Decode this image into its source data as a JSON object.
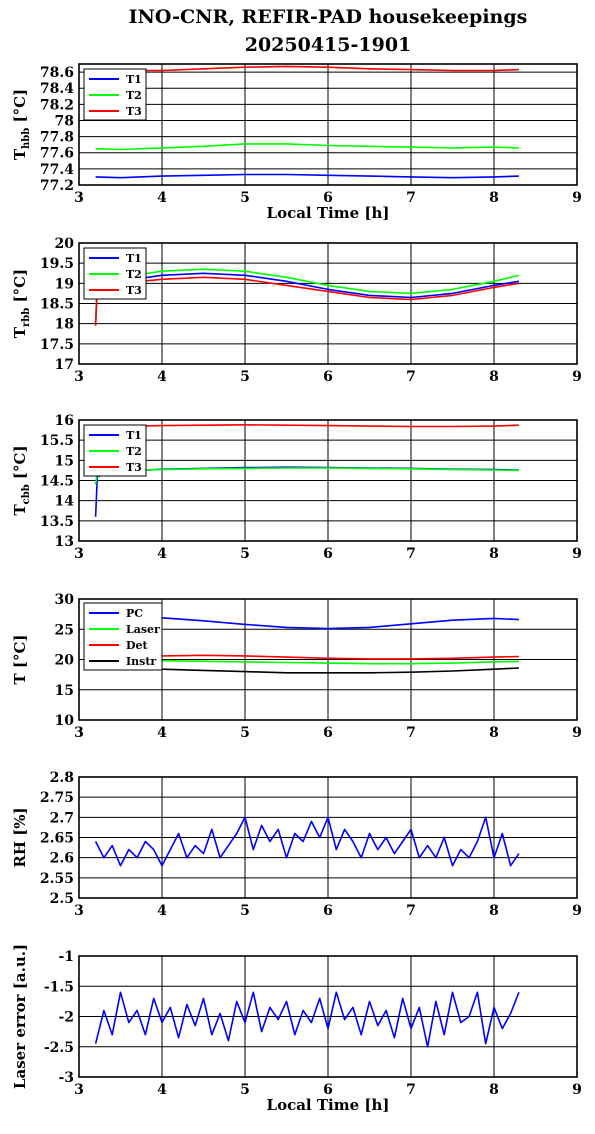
{
  "figure": {
    "title_line1": "INO-CNR, REFIR-PAD housekeepings",
    "title_line2": "20250415-1901"
  },
  "chart_data": [
    {
      "type": "line",
      "ylabel": "T",
      "ylabel_sub": "hbb",
      "ylabel_unit": " [°C]",
      "xlabel": "Local Time [h]",
      "xlim": [
        3,
        9
      ],
      "ylim": [
        77.2,
        78.7
      ],
      "xticks": [
        "3",
        "4",
        "5",
        "6",
        "7",
        "8",
        "9"
      ],
      "yticks": [
        "77.2",
        "77.4",
        "77.6",
        "77.8",
        "78",
        "78.2",
        "78.4",
        "78.6"
      ],
      "ytick_values": [
        77.2,
        77.4,
        77.6,
        77.8,
        78.0,
        78.2,
        78.4,
        78.6
      ],
      "grid": true,
      "legend": "top-left",
      "series": [
        {
          "name": "T1",
          "color": "#0000ff",
          "x": [
            3.2,
            3.5,
            4,
            4.5,
            5,
            5.5,
            6,
            6.5,
            7,
            7.5,
            8,
            8.3
          ],
          "y": [
            77.3,
            77.29,
            77.31,
            77.32,
            77.33,
            77.33,
            77.32,
            77.31,
            77.3,
            77.29,
            77.3,
            77.31
          ]
        },
        {
          "name": "T2",
          "color": "#00ff00",
          "x": [
            3.2,
            3.5,
            4,
            4.5,
            5,
            5.5,
            6,
            6.5,
            7,
            7.5,
            8,
            8.3
          ],
          "y": [
            77.65,
            77.64,
            77.66,
            77.68,
            77.71,
            77.71,
            77.69,
            77.68,
            77.67,
            77.66,
            77.67,
            77.66
          ]
        },
        {
          "name": "T3",
          "color": "#ff0000",
          "x": [
            3.2,
            3.5,
            4,
            4.5,
            5,
            5.5,
            6,
            6.5,
            7,
            7.5,
            8,
            8.3
          ],
          "y": [
            78.63,
            78.62,
            78.62,
            78.64,
            78.66,
            78.67,
            78.66,
            78.64,
            78.63,
            78.62,
            78.62,
            78.63
          ]
        }
      ]
    },
    {
      "type": "line",
      "ylabel": "T",
      "ylabel_sub": "rbb",
      "ylabel_unit": " [°C]",
      "xlabel": "",
      "xlim": [
        3,
        9
      ],
      "ylim": [
        17,
        20
      ],
      "xticks": [
        "3",
        "4",
        "5",
        "6",
        "7",
        "8",
        "9"
      ],
      "yticks": [
        "17",
        "17.5",
        "18",
        "18.5",
        "19",
        "19.5",
        "20"
      ],
      "ytick_values": [
        17,
        17.5,
        18,
        18.5,
        19,
        19.5,
        20
      ],
      "grid": true,
      "legend": "top-left",
      "series": [
        {
          "name": "T1",
          "color": "#0000ff",
          "x": [
            3.2,
            3.22,
            3.5,
            4,
            4.5,
            5,
            5.5,
            6,
            6.5,
            7,
            7.5,
            8,
            8.3
          ],
          "y": [
            18.0,
            19.0,
            19.05,
            19.2,
            19.25,
            19.2,
            19.05,
            18.85,
            18.7,
            18.65,
            18.75,
            18.95,
            19.05
          ]
        },
        {
          "name": "T2",
          "color": "#00ff00",
          "x": [
            3.2,
            3.22,
            3.5,
            4,
            4.5,
            5,
            5.5,
            6,
            6.5,
            7,
            7.5,
            8,
            8.3
          ],
          "y": [
            18.0,
            19.1,
            19.15,
            19.3,
            19.35,
            19.3,
            19.15,
            18.95,
            18.8,
            18.75,
            18.85,
            19.05,
            19.2
          ]
        },
        {
          "name": "T3",
          "color": "#ff0000",
          "x": [
            3.2,
            3.22,
            3.5,
            4,
            4.5,
            5,
            5.5,
            6,
            6.5,
            7,
            7.5,
            8,
            8.3
          ],
          "y": [
            17.95,
            18.95,
            19.0,
            19.1,
            19.15,
            19.1,
            18.95,
            18.8,
            18.65,
            18.6,
            18.7,
            18.9,
            19.0
          ]
        }
      ]
    },
    {
      "type": "line",
      "ylabel": "T",
      "ylabel_sub": "cbb",
      "ylabel_unit": " [°C]",
      "xlabel": "",
      "xlim": [
        3,
        9
      ],
      "ylim": [
        13,
        16
      ],
      "xticks": [
        "3",
        "4",
        "5",
        "6",
        "7",
        "8",
        "9"
      ],
      "yticks": [
        "13",
        "13.5",
        "14",
        "14.5",
        "15",
        "15.5",
        "16"
      ],
      "ytick_values": [
        13,
        13.5,
        14,
        14.5,
        15,
        15.5,
        16
      ],
      "grid": true,
      "legend": "top-left",
      "series": [
        {
          "name": "T1",
          "color": "#0000ff",
          "x": [
            3.2,
            3.22,
            3.5,
            4,
            4.5,
            5,
            5.5,
            6,
            6.5,
            7,
            7.5,
            8,
            8.3
          ],
          "y": [
            13.6,
            14.6,
            14.72,
            14.78,
            14.8,
            14.82,
            14.83,
            14.82,
            14.81,
            14.8,
            14.78,
            14.77,
            14.76
          ]
        },
        {
          "name": "T2",
          "color": "#00ff00",
          "x": [
            3.2,
            3.22,
            3.5,
            4,
            4.5,
            5,
            5.5,
            6,
            6.5,
            7,
            7.5,
            8,
            8.3
          ],
          "y": [
            14.4,
            14.7,
            14.74,
            14.77,
            14.79,
            14.8,
            14.81,
            14.81,
            14.8,
            14.79,
            14.77,
            14.76,
            14.75
          ]
        },
        {
          "name": "T3",
          "color": "#ff0000",
          "x": [
            3.2,
            3.5,
            4,
            4.5,
            5,
            5.5,
            6,
            6.5,
            7,
            7.5,
            8,
            8.3
          ],
          "y": [
            15.85,
            15.84,
            15.86,
            15.87,
            15.88,
            15.87,
            15.86,
            15.85,
            15.84,
            15.84,
            15.85,
            15.87
          ]
        }
      ]
    },
    {
      "type": "line",
      "ylabel": "T [°C]",
      "ylabel_sub": "",
      "ylabel_unit": "",
      "xlabel": "",
      "xlim": [
        3,
        9
      ],
      "ylim": [
        10,
        30
      ],
      "xticks": [
        "3",
        "4",
        "5",
        "6",
        "7",
        "8",
        "9"
      ],
      "yticks": [
        "10",
        "15",
        "20",
        "25",
        "30"
      ],
      "ytick_values": [
        10,
        15,
        20,
        25,
        30
      ],
      "grid": true,
      "legend": "top-left",
      "series": [
        {
          "name": "PC",
          "color": "#0000ff",
          "x": [
            3.2,
            3.5,
            4,
            4.5,
            5,
            5.5,
            6,
            6.5,
            7,
            7.5,
            8,
            8.3
          ],
          "y": [
            27.3,
            27.2,
            26.9,
            26.4,
            25.8,
            25.3,
            25.1,
            25.3,
            25.9,
            26.5,
            26.8,
            26.6
          ]
        },
        {
          "name": "Laser",
          "color": "#00ff00",
          "x": [
            3.2,
            3.5,
            4,
            4.5,
            5,
            5.5,
            6,
            6.5,
            7,
            7.5,
            8,
            8.3
          ],
          "y": [
            19.8,
            19.8,
            19.8,
            19.7,
            19.6,
            19.5,
            19.4,
            19.3,
            19.3,
            19.4,
            19.6,
            19.7
          ]
        },
        {
          "name": "Det",
          "color": "#ff0000",
          "x": [
            3.2,
            3.5,
            4,
            4.5,
            5,
            5.5,
            6,
            6.5,
            7,
            7.5,
            8,
            8.3
          ],
          "y": [
            20.6,
            20.6,
            20.6,
            20.7,
            20.6,
            20.4,
            20.2,
            20.1,
            20.1,
            20.2,
            20.4,
            20.5
          ]
        },
        {
          "name": "Instr",
          "color": "#000000",
          "x": [
            3.2,
            3.5,
            4,
            4.5,
            5,
            5.5,
            6,
            6.5,
            7,
            7.5,
            8,
            8.3
          ],
          "y": [
            18.6,
            18.5,
            18.4,
            18.2,
            18.0,
            17.8,
            17.8,
            17.8,
            17.9,
            18.1,
            18.4,
            18.6
          ]
        }
      ]
    },
    {
      "type": "line",
      "ylabel": "RH [%]",
      "ylabel_sub": "",
      "ylabel_unit": "",
      "xlabel": "",
      "xlim": [
        3,
        9
      ],
      "ylim": [
        2.5,
        2.8
      ],
      "xticks": [
        "3",
        "4",
        "5",
        "6",
        "7",
        "8",
        "9"
      ],
      "yticks": [
        "2.5",
        "2.55",
        "2.6",
        "2.65",
        "2.7",
        "2.75",
        "2.8"
      ],
      "ytick_values": [
        2.5,
        2.55,
        2.6,
        2.65,
        2.7,
        2.75,
        2.8
      ],
      "grid": true,
      "legend": "none",
      "series": [
        {
          "name": "",
          "color": "#0000ff",
          "x": [
            3.2,
            3.3,
            3.4,
            3.5,
            3.6,
            3.7,
            3.8,
            3.9,
            4.0,
            4.1,
            4.2,
            4.3,
            4.4,
            4.5,
            4.6,
            4.7,
            4.8,
            4.9,
            5.0,
            5.1,
            5.2,
            5.3,
            5.4,
            5.5,
            5.6,
            5.7,
            5.8,
            5.9,
            6.0,
            6.1,
            6.2,
            6.3,
            6.4,
            6.5,
            6.6,
            6.7,
            6.8,
            6.9,
            7.0,
            7.1,
            7.2,
            7.3,
            7.4,
            7.5,
            7.6,
            7.7,
            7.8,
            7.9,
            8.0,
            8.1,
            8.2,
            8.3
          ],
          "y": [
            2.64,
            2.6,
            2.63,
            2.58,
            2.62,
            2.6,
            2.64,
            2.62,
            2.58,
            2.62,
            2.66,
            2.6,
            2.63,
            2.61,
            2.67,
            2.6,
            2.63,
            2.66,
            2.7,
            2.62,
            2.68,
            2.64,
            2.67,
            2.6,
            2.66,
            2.64,
            2.69,
            2.65,
            2.7,
            2.62,
            2.67,
            2.64,
            2.6,
            2.66,
            2.62,
            2.65,
            2.61,
            2.64,
            2.67,
            2.6,
            2.63,
            2.6,
            2.65,
            2.58,
            2.62,
            2.6,
            2.64,
            2.7,
            2.6,
            2.66,
            2.58,
            2.61
          ]
        }
      ]
    },
    {
      "type": "line",
      "ylabel": "Laser error [a.u.]",
      "ylabel_sub": "",
      "ylabel_unit": "",
      "xlabel": "Local Time [h]",
      "xlim": [
        3,
        9
      ],
      "ylim": [
        -3,
        -1
      ],
      "xticks": [
        "3",
        "4",
        "5",
        "6",
        "7",
        "8",
        "9"
      ],
      "yticks": [
        "-3",
        "-2.5",
        "-2",
        "-1.5",
        "-1"
      ],
      "ytick_values": [
        -3,
        -2.5,
        -2,
        -1.5,
        -1
      ],
      "grid": true,
      "legend": "none",
      "series": [
        {
          "name": "",
          "color": "#0000ff",
          "x": [
            3.2,
            3.3,
            3.4,
            3.5,
            3.6,
            3.7,
            3.8,
            3.9,
            4.0,
            4.1,
            4.2,
            4.3,
            4.4,
            4.5,
            4.6,
            4.7,
            4.8,
            4.9,
            5.0,
            5.1,
            5.2,
            5.3,
            5.4,
            5.5,
            5.6,
            5.7,
            5.8,
            5.9,
            6.0,
            6.1,
            6.2,
            6.3,
            6.4,
            6.5,
            6.6,
            6.7,
            6.8,
            6.9,
            7.0,
            7.1,
            7.2,
            7.3,
            7.4,
            7.5,
            7.6,
            7.7,
            7.8,
            7.9,
            8.0,
            8.1,
            8.2,
            8.3
          ],
          "y": [
            -2.45,
            -1.9,
            -2.3,
            -1.6,
            -2.1,
            -1.9,
            -2.3,
            -1.7,
            -2.1,
            -1.85,
            -2.35,
            -1.8,
            -2.15,
            -1.7,
            -2.3,
            -1.95,
            -2.4,
            -1.75,
            -2.1,
            -1.6,
            -2.25,
            -1.85,
            -2.05,
            -1.75,
            -2.3,
            -1.9,
            -2.1,
            -1.7,
            -2.2,
            -1.6,
            -2.05,
            -1.85,
            -2.3,
            -1.75,
            -2.15,
            -1.9,
            -2.35,
            -1.7,
            -2.2,
            -1.85,
            -2.5,
            -1.75,
            -2.3,
            -1.6,
            -2.1,
            -2.0,
            -1.6,
            -2.45,
            -1.85,
            -2.2,
            -1.95,
            -1.6
          ]
        }
      ]
    }
  ]
}
